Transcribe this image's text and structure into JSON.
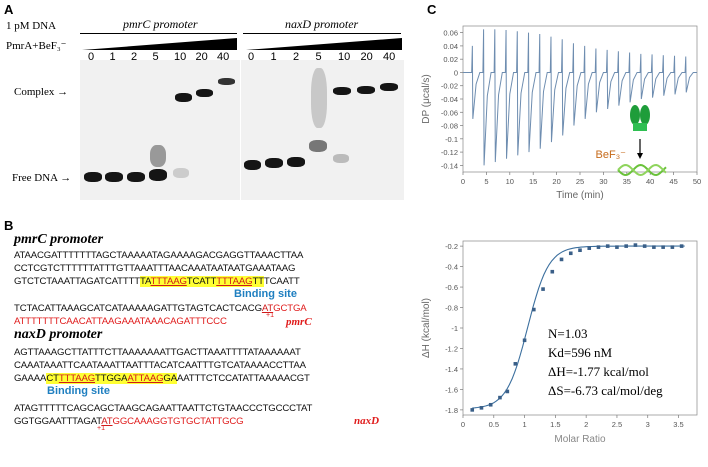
{
  "panelA": {
    "label": "A",
    "dna": "1 pM DNA",
    "pmra": "PmrA+BeF₃⁻",
    "pmrc_promoter": "pmrC promoter",
    "naxd_promoter": "naxD promoter",
    "lanes_left": [
      "0",
      "1",
      "2",
      "5",
      "10",
      "20",
      "40"
    ],
    "lanes_right": [
      "0",
      "1",
      "2",
      "5",
      "10",
      "20",
      "40"
    ],
    "complex": "Complex",
    "free_dna": "Free DNA"
  },
  "panelB": {
    "label": "B",
    "pmrc_title": "pmrC promoter",
    "pmrc_lines": [
      "ATAACGATTTTTTTAGCTAAAAATAGAAAAGACGAGGTTAAACTTAA",
      "CCTCGTCTTTTTTATTTGTTAAATTTAACAAATAATAATGAAATAAG"
    ],
    "pmrc_l3_a": "GTCTCTAAATTAGATCATTTT",
    "pmrc_l3_b": "TA",
    "pmrc_l3_c": "TTTAAG",
    "pmrc_l3_d": "TCATT",
    "pmrc_l3_e": "TTTAAG",
    "pmrc_l3_f": "TT",
    "pmrc_l3_g": "TCAATT",
    "binding_site": "Binding site",
    "pmrc_l4_a": "TCTACATTAAAGCATCATAAAAAGATTGTAGTCACTCACG",
    "pmrc_l4_b": "AT",
    "pmrc_l4_c": "GCTGA",
    "pmrc_l5": "ATTTTTTTCAACATTAAGAAATAAACAGATTTCCC",
    "pmrc_tag": "pmrC",
    "plus1": "+1",
    "naxd_title": "naxD promoter",
    "naxd_lines": [
      "AGTTAAAGCTTATTTCTTAAAAAAATTGACTTAAATTTTATAAAAAAT",
      "CAAATAAATTCAATAAATTAATTTACATCAATTTGTCATAAAACCTTAA"
    ],
    "naxd_l3_a": "GAAAA",
    "naxd_l3_b": "CT",
    "naxd_l3_c": "TTTAAG",
    "naxd_l3_d": "TTGGA",
    "naxd_l3_e": "ATTAAG",
    "naxd_l3_f": "GA",
    "naxd_l3_g": "AATTTCTCCATATTAAAAACGT",
    "naxd_l4": "ATAGTTTTTCAGCAGCTAAGCAGAATTAATTCTGTAACCCTGCCCTAT",
    "naxd_l5_a": "GGTGGAATTTAGAT",
    "naxd_l5_b": "AT",
    "naxd_l5_c": "GGCAAAGGTGTGCTATTGCG",
    "naxd_tag": "naxD"
  },
  "panelC": {
    "label": "C",
    "itc_ylabel": "DP (μcal/s)",
    "itc_xlabel": "Time (min)",
    "itc_yticks": [
      "0.06",
      "0.04",
      "0.02",
      "0",
      "-0.02",
      "-0.04",
      "-0.06",
      "-0.08",
      "-0.1",
      "-0.12",
      "-0.14"
    ],
    "itc_xticks": [
      "0",
      "5",
      "10",
      "15",
      "20",
      "25",
      "30",
      "35",
      "40",
      "45",
      "50"
    ],
    "bef3": "BeF₃⁻",
    "fit_ylabel": "ΔH (kcal/mol)",
    "fit_xlabel": "Molar Ratio",
    "fit_yticks": [
      "-0.2",
      "-0.4",
      "-0.6",
      "-0.8",
      "-1",
      "-1.2",
      "-1.4",
      "-1.6",
      "-1.8"
    ],
    "fit_xticks": [
      "0",
      "0.5",
      "1",
      "1.5",
      "2",
      "2.5",
      "3",
      "3.5"
    ],
    "n": "N=1.03",
    "kd": "Kd=596 nM",
    "dh": "ΔH=-1.77 kcal/mol",
    "ds": "ΔS=-6.73 cal/mol/deg"
  },
  "chart_data": [
    {
      "type": "line",
      "title": "",
      "xlabel": "Time (min)",
      "ylabel": "DP (μcal/s)",
      "xlim": [
        0,
        50
      ],
      "ylim": [
        -0.15,
        0.07
      ],
      "series": [
        {
          "injection_times": [
            2,
            4.4,
            6.8,
            9.2,
            11.6,
            14,
            16.4,
            18.8,
            21.2,
            23.6,
            26,
            28.4,
            30.8,
            33.2,
            35.6,
            38,
            40.4,
            42.8,
            45.2,
            47.6
          ],
          "peak_values": [
            -0.07,
            -0.14,
            -0.135,
            -0.13,
            -0.125,
            -0.12,
            -0.115,
            -0.105,
            -0.095,
            -0.08,
            -0.07,
            -0.06,
            -0.055,
            -0.05,
            -0.045,
            -0.04,
            -0.038,
            -0.035,
            -0.033,
            -0.03
          ]
        }
      ]
    },
    {
      "type": "scatter",
      "title": "",
      "xlabel": "Molar Ratio",
      "ylabel": "ΔH (kcal/mol)",
      "xlim": [
        0,
        3.8
      ],
      "ylim": [
        -1.85,
        -0.15
      ],
      "series": [
        {
          "x": [
            0.15,
            0.3,
            0.45,
            0.6,
            0.72,
            0.85,
            1.0,
            1.15,
            1.3,
            1.45,
            1.6,
            1.75,
            1.9,
            2.05,
            2.2,
            2.35,
            2.5,
            2.65,
            2.8,
            2.95,
            3.1,
            3.25,
            3.4,
            3.55
          ],
          "y": [
            -1.8,
            -1.78,
            -1.75,
            -1.68,
            -1.62,
            -1.35,
            -1.12,
            -0.82,
            -0.62,
            -0.45,
            -0.33,
            -0.27,
            -0.24,
            -0.22,
            -0.21,
            -0.2,
            -0.21,
            -0.2,
            -0.19,
            -0.2,
            -0.21,
            -0.21,
            -0.21,
            -0.2
          ]
        }
      ]
    }
  ]
}
